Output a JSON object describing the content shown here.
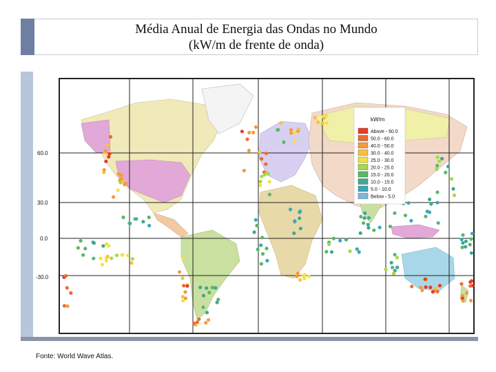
{
  "title": {
    "line1": "Média Anual de Energia das Ondas no Mundo",
    "line2": "(kW/m de frente de onda)"
  },
  "caption": "Fonte: World Wave Atlas.",
  "map": {
    "latitude_labels": [
      "60.0",
      "30.0",
      "0.0",
      "-30.0"
    ],
    "ocean_color": "#ffffff",
    "land_colors": [
      "#e8d9a8",
      "#c9e0a0",
      "#e2a8d8",
      "#f2c9a0",
      "#a8d8e8",
      "#d8d0f0",
      "#f0f0a8"
    ]
  },
  "legend": {
    "title": "kW/m",
    "entries": [
      {
        "label": "Above - 60.0",
        "color": "#e83c28"
      },
      {
        "label": "50.0 - 60.0",
        "color": "#f06a30"
      },
      {
        "label": "40.0 - 50.0",
        "color": "#f59a3a"
      },
      {
        "label": "30.0 - 40.0",
        "color": "#f7c23a"
      },
      {
        "label": "25.0 - 30.0",
        "color": "#f5e23a"
      },
      {
        "label": "20.0 - 25.0",
        "color": "#a8d848"
      },
      {
        "label": "15.0 - 20.0",
        "color": "#58b868"
      },
      {
        "label": "10.0 - 15.0",
        "color": "#40a890"
      },
      {
        "label": "5.0 - 10.0",
        "color": "#3aa8b8"
      },
      {
        "label": "Below - 5.0",
        "color": "#7ab8e0"
      }
    ]
  }
}
